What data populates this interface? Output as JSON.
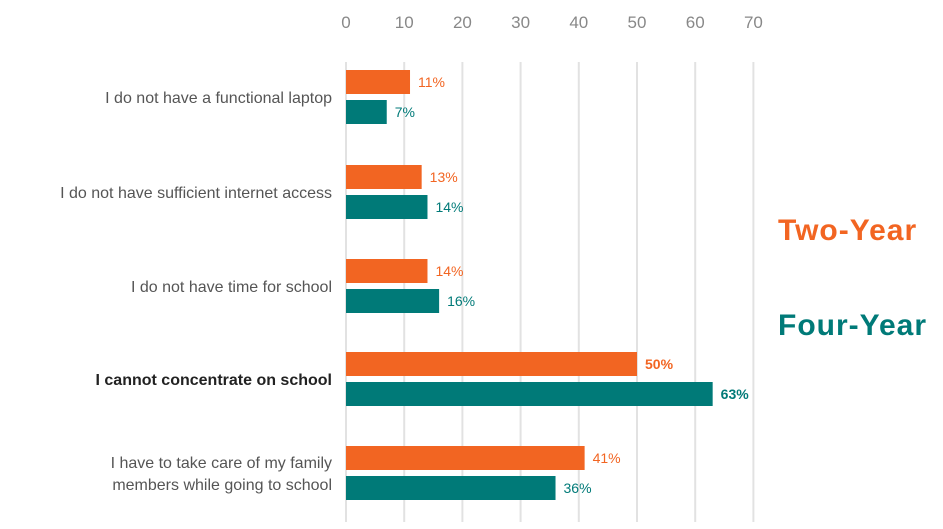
{
  "chart_data": {
    "type": "bar",
    "orientation": "horizontal",
    "xlim": [
      0,
      70
    ],
    "x_ticks": [
      "0",
      "10",
      "20",
      "30",
      "40",
      "50",
      "60",
      "70"
    ],
    "grid": true,
    "legend_position": "right",
    "categories": [
      [
        "I do not have a functional laptop"
      ],
      [
        "I do not have sufficient internet access"
      ],
      [
        "I do not have time for school"
      ],
      [
        "I cannot concentrate on school"
      ],
      [
        "I have to take care of my family",
        "members while going to school"
      ]
    ],
    "highlighted_category_index": 3,
    "series": [
      {
        "name": "Two-Year",
        "color": "#f26522",
        "values": [
          11,
          13,
          14,
          50,
          41
        ],
        "labels": [
          "11%",
          "13%",
          "14%",
          "50%",
          "41%"
        ]
      },
      {
        "name": "Four-Year",
        "color": "#007a78",
        "values": [
          7,
          14,
          16,
          63,
          36
        ],
        "labels": [
          "7%",
          "14%",
          "16%",
          "63%",
          "36%"
        ]
      }
    ]
  }
}
